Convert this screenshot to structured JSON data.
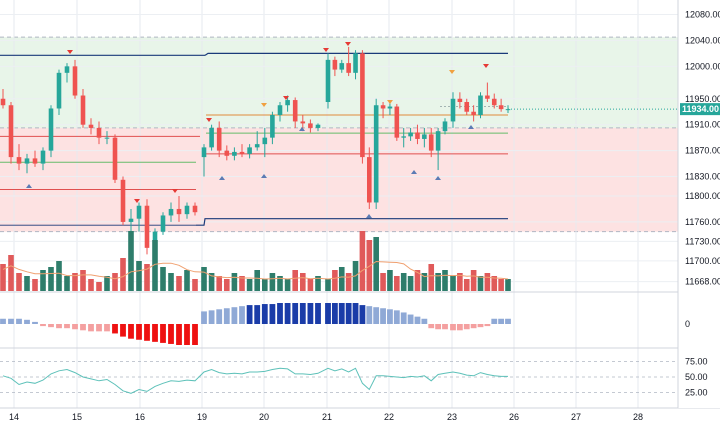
{
  "chart_data": {
    "type": "candlestick",
    "price_axis": {
      "ticks": [
        "12080.00",
        "12040.00",
        "12000.00",
        "11950.00",
        "11910.00",
        "11870.00",
        "11830.00",
        "11800.00",
        "11760.00",
        "11730.00",
        "11700.00",
        "11668.00"
      ],
      "ylim": [
        11655,
        12090
      ],
      "current_price": "11934.00"
    },
    "oscillator_axis": {
      "ticks": [
        "0"
      ]
    },
    "rsi_axis": {
      "ticks": [
        "75.00",
        "50.00",
        "25.00"
      ],
      "ylim": [
        10,
        90
      ]
    },
    "x_ticks": [
      "14",
      "15",
      "16",
      "19",
      "20",
      "21",
      "22",
      "23",
      "26",
      "27",
      "28"
    ],
    "candles": [
      [
        11950,
        11965,
        11935,
        11940
      ],
      [
        11940,
        11945,
        11850,
        11860
      ],
      [
        11860,
        11880,
        11840,
        11850
      ],
      [
        11850,
        11865,
        11835,
        11858
      ],
      [
        11858,
        11870,
        11845,
        11850
      ],
      [
        11850,
        11875,
        11840,
        11870
      ],
      [
        11870,
        11940,
        11860,
        11935
      ],
      [
        11935,
        11995,
        11925,
        11990
      ],
      [
        11990,
        12005,
        11975,
        12000
      ],
      [
        12000,
        12010,
        11950,
        11955
      ],
      [
        11955,
        11965,
        11905,
        11910
      ],
      [
        11910,
        11920,
        11895,
        11905
      ],
      [
        11905,
        11915,
        11880,
        11890
      ],
      [
        11890,
        11900,
        11880,
        11890
      ],
      [
        11890,
        11895,
        11820,
        11825
      ],
      [
        11825,
        11830,
        11755,
        11760
      ],
      [
        11760,
        11780,
        11730,
        11765
      ],
      [
        11765,
        11790,
        11745,
        11785
      ],
      [
        11785,
        11795,
        11710,
        11720
      ],
      [
        11720,
        11750,
        11712,
        11745
      ],
      [
        11745,
        11775,
        11740,
        11770
      ],
      [
        11770,
        11790,
        11760,
        11780
      ],
      [
        11780,
        11800,
        11760,
        11772
      ],
      [
        11772,
        11790,
        11765,
        11785
      ],
      [
        11785,
        11790,
        11770,
        11775
      ],
      [
        11860,
        11880,
        11830,
        11875
      ],
      [
        11875,
        11910,
        11870,
        11905
      ],
      [
        11905,
        11915,
        11860,
        11870
      ],
      [
        11870,
        11878,
        11855,
        11862
      ],
      [
        11862,
        11875,
        11855,
        11868
      ],
      [
        11868,
        11880,
        11860,
        11865
      ],
      [
        11865,
        11880,
        11858,
        11875
      ],
      [
        11875,
        11900,
        11870,
        11880
      ],
      [
        11880,
        11905,
        11860,
        11890
      ],
      [
        11890,
        11930,
        11880,
        11925
      ],
      [
        11925,
        11945,
        11915,
        11940
      ],
      [
        11940,
        11955,
        11930,
        11948
      ],
      [
        11948,
        11952,
        11905,
        11915
      ],
      [
        11915,
        11925,
        11900,
        11912
      ],
      [
        11912,
        11918,
        11898,
        11905
      ],
      [
        11905,
        11912,
        11900,
        11910
      ],
      [
        11945,
        12020,
        11935,
        12010
      ],
      [
        12010,
        12015,
        11985,
        11995
      ],
      [
        11995,
        12010,
        11990,
        12005
      ],
      [
        12005,
        12030,
        11985,
        11990
      ],
      [
        11990,
        12025,
        11980,
        12020
      ],
      [
        12020,
        12025,
        11850,
        11860
      ],
      [
        11860,
        11875,
        11780,
        11790
      ],
      [
        11790,
        11950,
        11780,
        11940
      ],
      [
        11940,
        11945,
        11920,
        11935
      ],
      [
        11935,
        11945,
        11925,
        11938
      ],
      [
        11938,
        11942,
        11885,
        11890
      ],
      [
        11890,
        11905,
        11875,
        11892
      ],
      [
        11892,
        11905,
        11885,
        11898
      ],
      [
        11898,
        11910,
        11880,
        11888
      ],
      [
        11888,
        11905,
        11875,
        11895
      ],
      [
        11895,
        11905,
        11860,
        11870
      ],
      [
        11870,
        11905,
        11840,
        11900
      ],
      [
        11900,
        11920,
        11895,
        11915
      ],
      [
        11915,
        11960,
        11905,
        11950
      ],
      [
        11950,
        11960,
        11935,
        11945
      ],
      [
        11945,
        11950,
        11925,
        11930
      ],
      [
        11930,
        11940,
        11915,
        11925
      ],
      [
        11925,
        11960,
        11920,
        11955
      ],
      [
        11955,
        11975,
        11945,
        11950
      ],
      [
        11950,
        11958,
        11935,
        11940
      ],
      [
        11940,
        11950,
        11930,
        11934
      ],
      [
        11934,
        11940,
        11928,
        11934
      ]
    ],
    "volume": [
      0.45,
      0.6,
      0.3,
      0.25,
      0.2,
      0.35,
      0.4,
      0.5,
      0.25,
      0.3,
      0.35,
      0.2,
      0.15,
      0.25,
      0.3,
      0.55,
      1.0,
      0.5,
      0.45,
      0.85,
      0.4,
      0.3,
      0.25,
      0.35,
      0.2,
      0.4,
      0.3,
      0.25,
      0.2,
      0.3,
      0.25,
      0.2,
      0.35,
      0.2,
      0.3,
      0.25,
      0.2,
      0.35,
      0.3,
      0.2,
      0.25,
      0.2,
      0.35,
      0.4,
      0.3,
      0.5,
      1.0,
      0.85,
      0.9,
      0.3,
      0.35,
      0.25,
      0.3,
      0.25,
      0.35,
      0.3,
      0.45,
      0.3,
      0.35,
      0.25,
      0.3,
      0.2,
      0.35,
      0.25,
      0.3,
      0.25,
      0.2,
      0.2
    ],
    "oscillator": [
      0.25,
      0.25,
      0.25,
      0.2,
      0.1,
      -0.1,
      -0.15,
      -0.2,
      -0.2,
      -0.25,
      -0.3,
      -0.35,
      -0.35,
      -0.35,
      -0.45,
      -0.6,
      -0.7,
      -0.75,
      -0.8,
      -0.85,
      -0.9,
      -0.95,
      -1.0,
      -1.0,
      -1.0,
      0.6,
      0.65,
      0.7,
      0.75,
      0.8,
      0.85,
      0.9,
      0.9,
      0.95,
      0.95,
      1.0,
      1.0,
      1.0,
      1.0,
      1.0,
      1.0,
      1.0,
      1.0,
      1.0,
      1.0,
      1.0,
      0.9,
      0.85,
      0.8,
      0.75,
      0.7,
      0.65,
      0.55,
      0.45,
      0.35,
      0.25,
      -0.2,
      -0.25,
      -0.25,
      -0.3,
      -0.3,
      -0.25,
      -0.2,
      -0.15,
      -0.1,
      0.25,
      0.25,
      0.25
    ],
    "rsi": [
      52,
      48,
      38,
      42,
      40,
      45,
      55,
      60,
      62,
      57,
      50,
      47,
      44,
      46,
      38,
      28,
      24,
      30,
      27,
      35,
      40,
      44,
      43,
      45,
      44,
      58,
      62,
      57,
      55,
      56,
      55,
      58,
      58,
      59,
      62,
      64,
      63,
      55,
      55,
      54,
      56,
      64,
      60,
      63,
      58,
      64,
      40,
      30,
      52,
      52,
      51,
      50,
      49,
      51,
      50,
      52,
      44,
      54,
      56,
      58,
      56,
      53,
      52,
      57,
      54,
      52,
      51,
      51
    ],
    "colors": {
      "up": "#26a69a",
      "down": "#ef5350",
      "volume_up": "#2e7d6b",
      "volume_down": "#e05a5a",
      "green_zone": "#e8f5e9",
      "red_zone": "#fde2e2",
      "navy": "#1a3a7a",
      "price_tag": "#26a69a",
      "osc_dark": "#1a3ca8",
      "osc_light": "#8fa9d6",
      "osc_red": "#ee1111",
      "osc_pink": "#f4a0a0",
      "rsi": "#5dc1b9"
    }
  }
}
